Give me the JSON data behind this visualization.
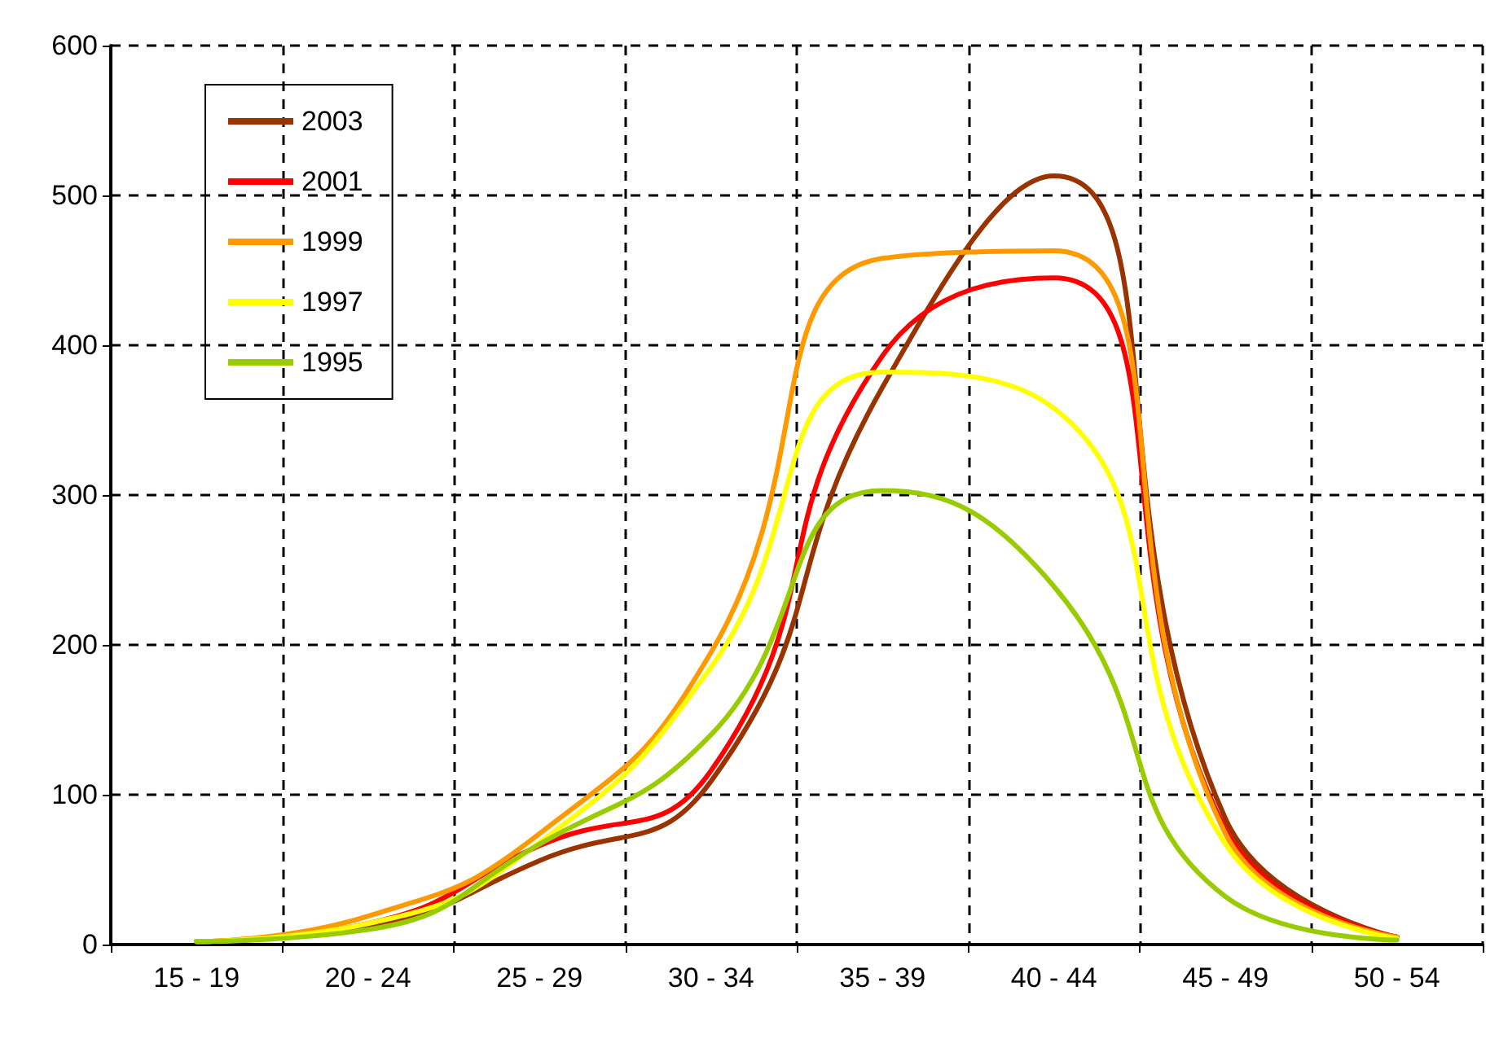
{
  "chart_data": {
    "type": "line",
    "categories": [
      "15 - 19",
      "20 - 24",
      "25 - 29",
      "30 - 34",
      "35 - 39",
      "40 - 44",
      "45 - 49",
      "50 - 54"
    ],
    "series": [
      {
        "name": "2003",
        "color": "#993300",
        "values": [
          2,
          12,
          56,
          109,
          372,
          513,
          84,
          5
        ]
      },
      {
        "name": "2001",
        "color": "#ff0000",
        "values": [
          2,
          14,
          66,
          116,
          393,
          445,
          77,
          5
        ]
      },
      {
        "name": "1999",
        "color": "#ff9900",
        "values": [
          2,
          19,
          74,
          195,
          458,
          463,
          74,
          5
        ]
      },
      {
        "name": "1997",
        "color": "#ffff00",
        "values": [
          2,
          14,
          68,
          185,
          382,
          358,
          67,
          4
        ]
      },
      {
        "name": "1995",
        "color": "#99cc00",
        "values": [
          2,
          10,
          67,
          140,
          303,
          239,
          32,
          3
        ]
      }
    ],
    "ylim": [
      0,
      600
    ],
    "yticks": [
      0,
      100,
      200,
      300,
      400,
      500,
      600
    ],
    "grid": true,
    "legend": "top left",
    "marker": "none",
    "line_style": "solid"
  }
}
